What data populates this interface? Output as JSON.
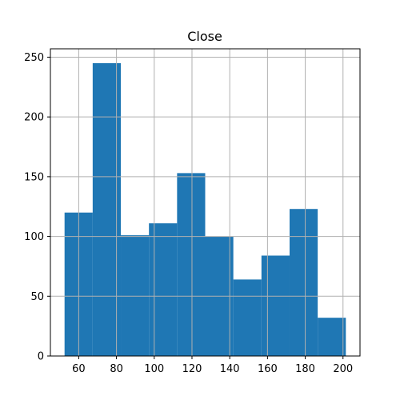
{
  "chart_data": {
    "type": "bar",
    "title": "Close",
    "xlabel": "",
    "ylabel": "",
    "bin_edges": [
      52.5,
      67.4,
      82.3,
      97.2,
      112.1,
      127.0,
      141.9,
      156.8,
      171.7,
      186.6,
      201.5
    ],
    "values": [
      120,
      245,
      101,
      111,
      153,
      100,
      64,
      84,
      123,
      32
    ],
    "xlim": [
      45.0,
      209.0
    ],
    "ylim": [
      0,
      257
    ],
    "xticks": [
      60,
      80,
      100,
      120,
      140,
      160,
      180,
      200
    ],
    "yticks": [
      0,
      50,
      100,
      150,
      200,
      250
    ],
    "grid": true,
    "bar_color": "#1f77b4",
    "grid_color": "#b0b0b0"
  }
}
